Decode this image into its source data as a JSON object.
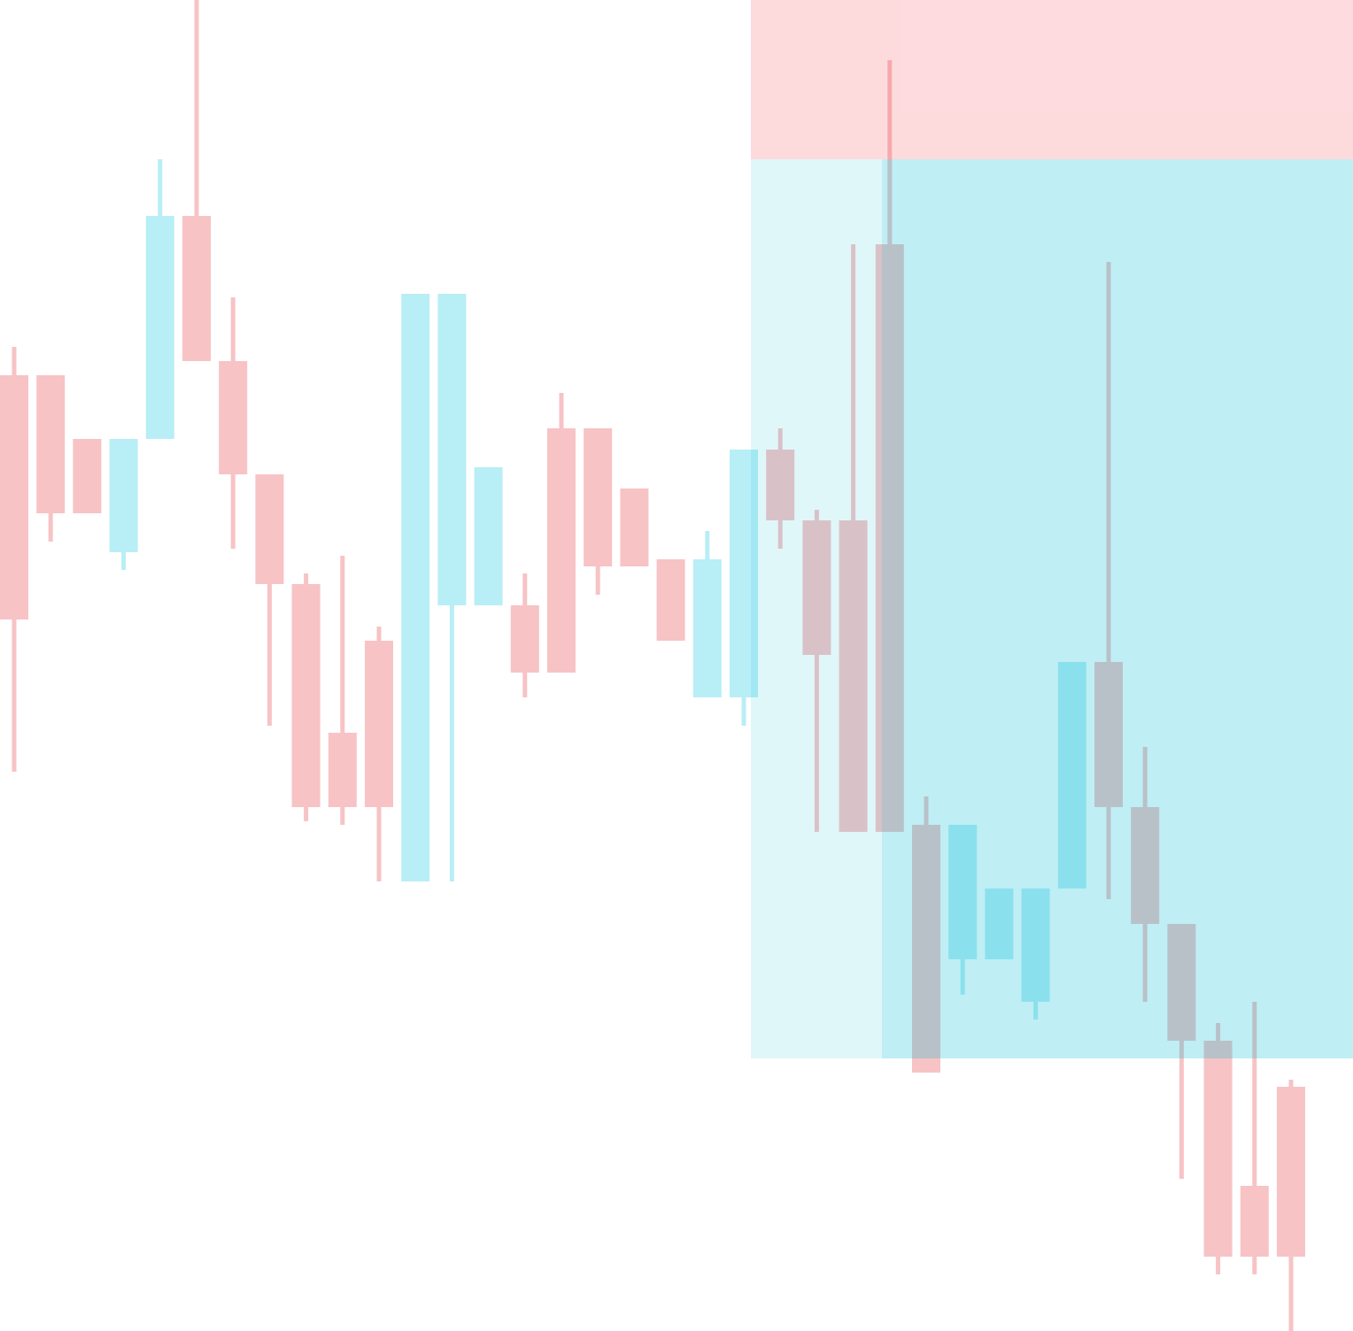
{
  "chart_data": {
    "type": "candlestick",
    "open": [
      1080,
      1080,
      1008,
      880,
      1008,
      1260,
      1096,
      968,
      844,
      676,
      780,
      508,
      820,
      820,
      820,
      1020,
      1020,
      952,
      872,
      716,
      716,
      996,
      916,
      916,
      1228,
      572,
      420,
      420,
      372,
      500,
      756,
      592,
      460,
      328,
      164,
      276
    ],
    "high": [
      1112,
      1080,
      1008,
      1008,
      1324,
      1504,
      1168,
      968,
      856,
      876,
      796,
      1172,
      1172,
      976,
      856,
      1060,
      1020,
      952,
      872,
      904,
      996,
      1020,
      928,
      1228,
      1436,
      604,
      572,
      500,
      500,
      756,
      1208,
      660,
      460,
      348,
      372,
      284
    ],
    "low": [
      632,
      892,
      924,
      860,
      1008,
      1096,
      884,
      684,
      576,
      572,
      508,
      508,
      508,
      820,
      716,
      744,
      832,
      864,
      780,
      716,
      684,
      884,
      564,
      564,
      564,
      292,
      380,
      420,
      352,
      500,
      488,
      372,
      172,
      64,
      64,
      0
    ],
    "close": [
      804,
      924,
      924,
      1008,
      1260,
      1096,
      968,
      844,
      592,
      592,
      592,
      1172,
      1172,
      976,
      744,
      744,
      864,
      864,
      780,
      872,
      996,
      916,
      764,
      564,
      564,
      292,
      572,
      500,
      500,
      756,
      592,
      460,
      328,
      84,
      84,
      84
    ],
    "up_color": "#b8eef6",
    "down_color": "#f7c3c5",
    "ylim": [
      0,
      1504
    ],
    "position": {
      "entry": 1324,
      "stop": 1504,
      "target": 308,
      "profit_color": "#00bcd4",
      "loss_color": "#f23645"
    }
  }
}
